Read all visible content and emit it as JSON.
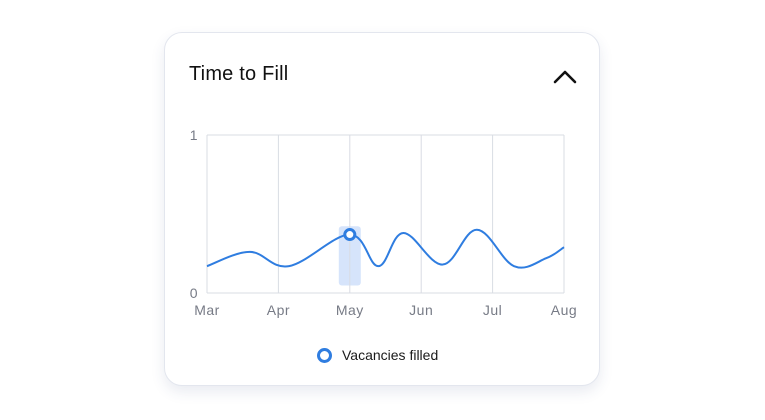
{
  "card": {
    "title": "Time to Fill"
  },
  "icons": {
    "collapse": "chevron-up-icon"
  },
  "colors": {
    "line": "#2f7de0",
    "highlight": "#d6e4fb",
    "grid": "#d9dce3",
    "tick": "#777b86"
  },
  "chart_data": {
    "type": "line",
    "title": "Time to Fill",
    "xlabel": "",
    "ylabel": "",
    "categories": [
      "Mar",
      "Apr",
      "May",
      "Jun",
      "Jul",
      "Aug"
    ],
    "yticks": [
      "0",
      "1"
    ],
    "ylim": [
      0,
      1
    ],
    "grid": true,
    "legend_position": "bottom",
    "highlighted_x": 2,
    "series": [
      {
        "name": "Vacancies filled",
        "x": [
          0,
          0.6,
          1.15,
          2.0,
          2.4,
          2.75,
          3.3,
          3.78,
          4.3,
          4.75,
          5.0
        ],
        "y": [
          0.17,
          0.26,
          0.17,
          0.37,
          0.17,
          0.38,
          0.18,
          0.4,
          0.17,
          0.22,
          0.29
        ]
      }
    ],
    "tooltip_point": {
      "x": 2.0,
      "y": 0.37
    }
  },
  "legend": {
    "items": [
      {
        "label": "Vacancies filled"
      }
    ]
  }
}
